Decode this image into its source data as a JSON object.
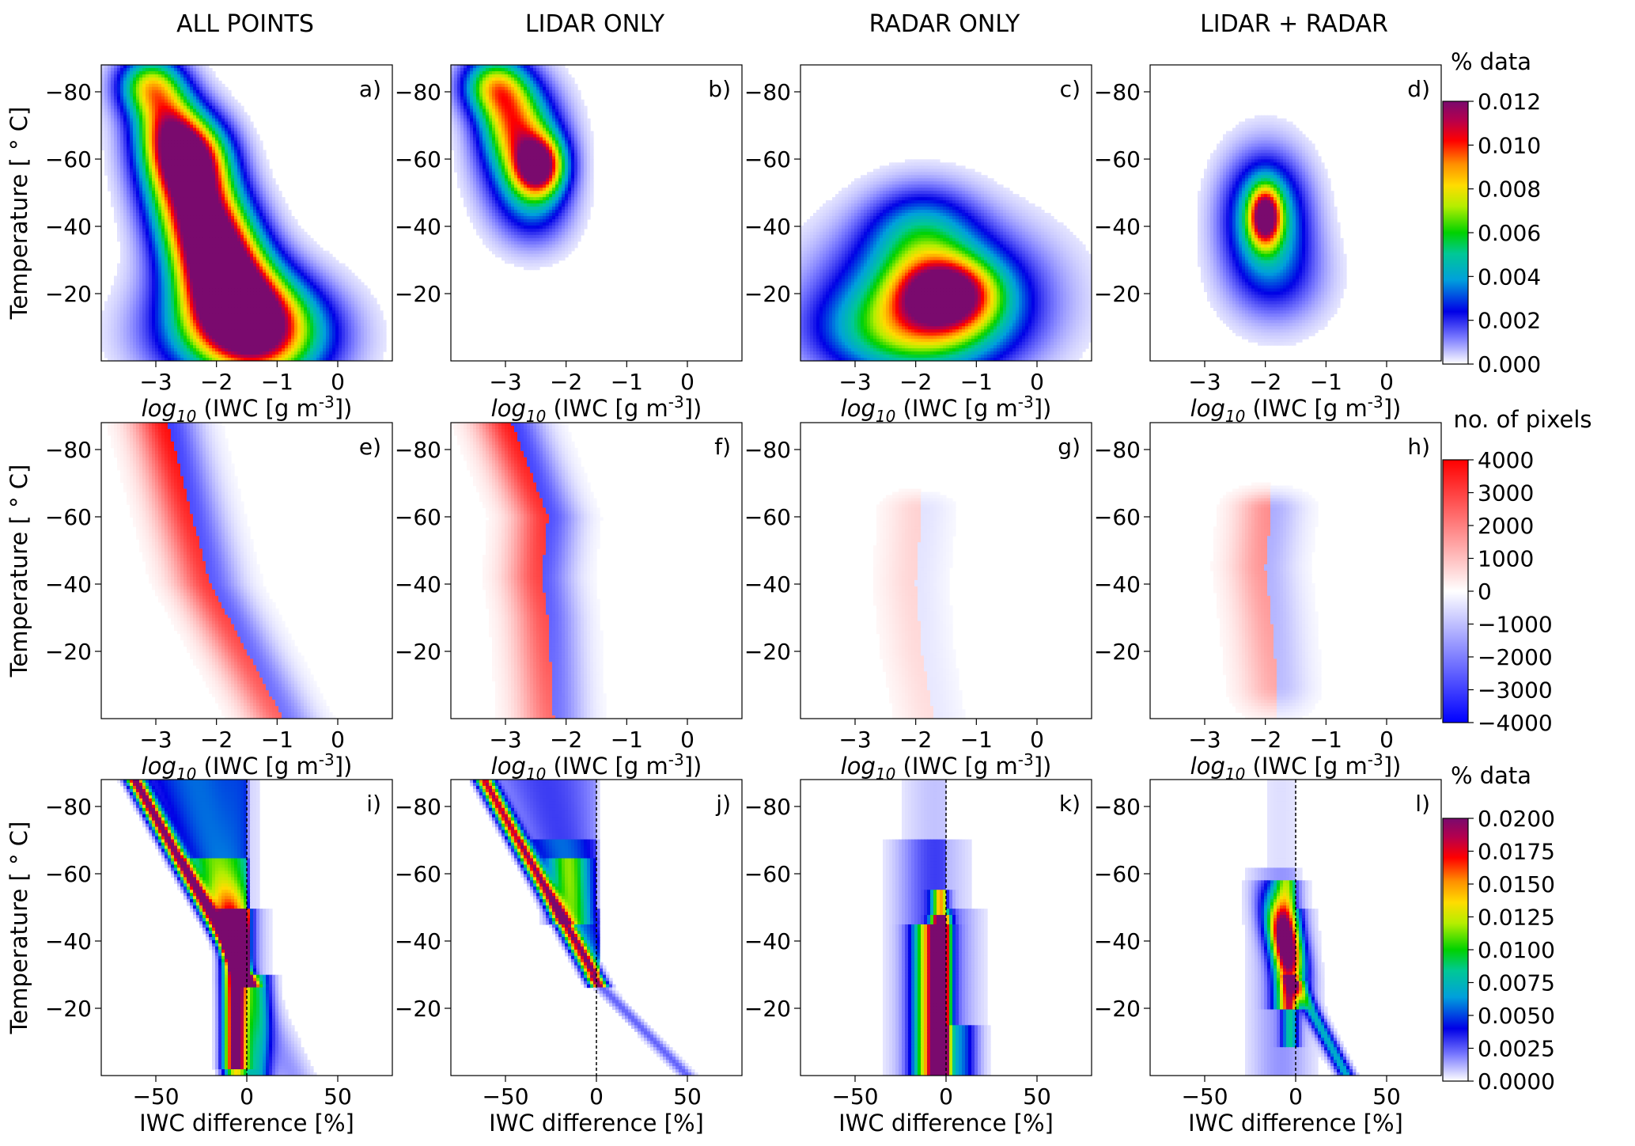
{
  "figure": {
    "column_titles": [
      "ALL POINTS",
      "LIDAR ONLY",
      "RADAR ONLY",
      "LIDAR + RADAR"
    ],
    "panel_labels": [
      "a)",
      "b)",
      "c)",
      "d)",
      "e)",
      "f)",
      "g)",
      "h)",
      "i)",
      "j)",
      "k)",
      "l)"
    ],
    "ylabel": "Temperature [$^\\circ$C]",
    "ylabel_display": "Temperature [ ° C]",
    "xlabel_top_rows": "log10 (IWC [g m-3])",
    "xlabel_parts": {
      "log": "log",
      "sub": "10",
      "main": " (IWC [g m",
      "sup": "-3",
      "end": "])"
    },
    "xlabel_bottom_row": "IWC difference [%]"
  },
  "colorbars": [
    {
      "title": "% data",
      "ticks": [
        "0.000",
        "0.002",
        "0.004",
        "0.006",
        "0.008",
        "0.010",
        "0.012"
      ],
      "colormap": "white-blue-green-yellow-red-purple",
      "stops": [
        "#ffffff",
        "#5b5bff",
        "#0000e6",
        "#00c8c8",
        "#00d200",
        "#ffff00",
        "#ffa000",
        "#ff0000",
        "#8b008b",
        "#7a0a6e"
      ]
    },
    {
      "title": "no. of pixels",
      "ticks": [
        "4000",
        "3000",
        "2000",
        "1000",
        "0",
        "−1000",
        "−2000",
        "−3000",
        "−4000"
      ],
      "colormap": "bwr",
      "stops": [
        "#ff0000",
        "#ffffff",
        "#0000ff"
      ]
    },
    {
      "title": "% data",
      "ticks": [
        "0.0000",
        "0.0025",
        "0.0050",
        "0.0075",
        "0.0100",
        "0.0125",
        "0.0150",
        "0.0175",
        "0.0200"
      ],
      "colormap": "white-blue-green-yellow-red-purple"
    }
  ],
  "chart_data": [
    {
      "panel": "a)",
      "row": 1,
      "column": "ALL POINTS",
      "type": "heatmap",
      "xlabel": "log10 (IWC [g m-3])",
      "ylabel": "Temperature [ ° C]",
      "xticks": [
        -3,
        -2,
        -1,
        0
      ],
      "yticks": [
        -80,
        -60,
        -40,
        -20
      ],
      "xlim": [
        -3.9,
        0.9
      ],
      "ylim": [
        0,
        -88
      ],
      "description_of_mass": [
        {
          "x": -2.1,
          "y": -36,
          "sx": 0.5,
          "sy": 18,
          "tilt": 0.018,
          "a": 1.35
        },
        {
          "x": -1.5,
          "y": -15,
          "sx": 0.7,
          "sy": 11,
          "tilt": 0.02,
          "a": 0.65
        },
        {
          "x": -3.1,
          "y": -82,
          "sx": 0.35,
          "sy": 6,
          "tilt": 0,
          "a": 0.55
        },
        {
          "x": -2.8,
          "y": -70,
          "sx": 0.35,
          "sy": 8,
          "tilt": 0,
          "a": 0.55
        },
        {
          "x": -2.4,
          "y": -60,
          "sx": 0.4,
          "sy": 8,
          "tilt": 0,
          "a": 0.75
        },
        {
          "x": -1.6,
          "y": -8,
          "sx": 0.9,
          "sy": 10,
          "tilt": 0,
          "a": 0.55
        }
      ]
    },
    {
      "panel": "b)",
      "row": 1,
      "column": "LIDAR ONLY",
      "type": "heatmap",
      "xticks": [
        -3,
        -2,
        -1,
        0
      ],
      "yticks": [
        -80,
        -60,
        -40,
        -20
      ],
      "xlim": [
        -3.9,
        0.9
      ],
      "ylim": [
        0,
        -88
      ],
      "description_of_mass": [
        {
          "x": -2.45,
          "y": -58,
          "sx": 0.28,
          "sy": 6,
          "tilt": 0,
          "a": 0.85
        },
        {
          "x": -2.7,
          "y": -62,
          "sx": 0.45,
          "sy": 12,
          "tilt": 0,
          "a": 0.45
        },
        {
          "x": -3.2,
          "y": -82,
          "sx": 0.35,
          "sy": 6,
          "tilt": 0,
          "a": 0.55
        },
        {
          "x": -2.9,
          "y": -72,
          "sx": 0.35,
          "sy": 8,
          "tilt": 0,
          "a": 0.45
        },
        {
          "x": -2.5,
          "y": -45,
          "sx": 0.4,
          "sy": 8,
          "tilt": 0,
          "a": 0.15
        }
      ]
    },
    {
      "panel": "c)",
      "row": 1,
      "column": "RADAR ONLY",
      "type": "heatmap",
      "xticks": [
        -3,
        -2,
        -1,
        0
      ],
      "yticks": [
        -80,
        -60,
        -40,
        -20
      ],
      "xlim": [
        -3.9,
        0.9
      ],
      "ylim": [
        0,
        -88
      ],
      "description_of_mass": [
        {
          "x": -1.5,
          "y": -20,
          "sx": 0.55,
          "sy": 7,
          "tilt": 0,
          "a": 0.75
        },
        {
          "x": -1.7,
          "y": -20,
          "sx": 1.1,
          "sy": 13,
          "tilt": 0,
          "a": 0.45
        },
        {
          "x": -2.1,
          "y": -8,
          "sx": 1.0,
          "sy": 9,
          "tilt": 0,
          "a": 0.4
        },
        {
          "x": -1.9,
          "y": -38,
          "sx": 0.6,
          "sy": 9,
          "tilt": 0,
          "a": 0.3
        }
      ]
    },
    {
      "panel": "d)",
      "row": 1,
      "column": "LIDAR + RADAR",
      "type": "heatmap",
      "xticks": [
        -3,
        -2,
        -1,
        0
      ],
      "yticks": [
        -80,
        -60,
        -40,
        -20
      ],
      "xlim": [
        -3.9,
        0.9
      ],
      "ylim": [
        0,
        -88
      ],
      "description_of_mass": [
        {
          "x": -2.0,
          "y": -43,
          "sx": 0.18,
          "sy": 6,
          "tilt": 0,
          "a": 0.75
        },
        {
          "x": -2.0,
          "y": -43,
          "sx": 0.45,
          "sy": 12,
          "tilt": 0,
          "a": 0.45
        },
        {
          "x": -1.8,
          "y": -25,
          "sx": 0.55,
          "sy": 10,
          "tilt": 0,
          "a": 0.15
        }
      ]
    },
    {
      "panel": "e)",
      "row": 2,
      "column": "ALL POINTS",
      "type": "heatmap",
      "diverging": true,
      "xticks": [
        -3,
        -2,
        -1,
        0
      ],
      "yticks": [
        -80,
        -60,
        -40,
        -20
      ],
      "xlim": [
        -3.9,
        0.9
      ],
      "ylim": [
        0,
        -88
      ],
      "boundary": [
        [
          -2.8,
          -88
        ],
        [
          -2.4,
          -60
        ],
        [
          -2.1,
          -40
        ],
        [
          -1.5,
          -20
        ],
        [
          -0.9,
          0
        ]
      ],
      "red_max": 0.95,
      "blue_max": 0.75
    },
    {
      "panel": "f)",
      "row": 2,
      "column": "LIDAR ONLY",
      "type": "heatmap",
      "diverging": true,
      "xticks": [
        -3,
        -2,
        -1,
        0
      ],
      "yticks": [
        -80,
        -60,
        -40,
        -20
      ],
      "xlim": [
        -3.9,
        0.9
      ],
      "ylim": [
        0,
        -88
      ],
      "boundary": [
        [
          -2.9,
          -88
        ],
        [
          -2.3,
          -60
        ],
        [
          -2.4,
          -42
        ],
        [
          -2.3,
          -30
        ],
        [
          -2.2,
          0
        ]
      ],
      "red_max": 0.9,
      "blue_max": 0.75
    },
    {
      "panel": "g)",
      "row": 2,
      "column": "RADAR ONLY",
      "type": "heatmap",
      "diverging": true,
      "xticks": [
        -3,
        -2,
        -1,
        0
      ],
      "yticks": [
        -80,
        -60,
        -40,
        -20
      ],
      "xlim": [
        -3.9,
        0.9
      ],
      "ylim": [
        0,
        -88
      ],
      "boundary": [
        [
          -1.9,
          -62
        ],
        [
          -2.0,
          -40
        ],
        [
          -1.9,
          -20
        ],
        [
          -1.7,
          0
        ]
      ],
      "red_max": 0.2,
      "blue_max": 0.12
    },
    {
      "panel": "h)",
      "row": 2,
      "column": "LIDAR + RADAR",
      "type": "heatmap",
      "diverging": true,
      "xticks": [
        -3,
        -2,
        -1,
        0
      ],
      "yticks": [
        -80,
        -60,
        -40,
        -20
      ],
      "xlim": [
        -3.9,
        0.9
      ],
      "ylim": [
        0,
        -88
      ],
      "boundary": [
        [
          -1.9,
          -62
        ],
        [
          -2.0,
          -45
        ],
        [
          -1.9,
          -30
        ],
        [
          -1.8,
          -10
        ]
      ],
      "red_max": 0.5,
      "blue_max": 0.35
    },
    {
      "panel": "i)",
      "row": 3,
      "column": "ALL POINTS",
      "type": "heatmap",
      "xlabel": "IWC difference [%]",
      "xticks": [
        -50,
        0,
        50
      ],
      "yticks": [
        -80,
        -60,
        -40,
        -20
      ],
      "xlim": [
        -80,
        80
      ],
      "ylim": [
        0,
        -88
      ],
      "dashed_vertical_line_at_x": 0
    },
    {
      "panel": "j)",
      "row": 3,
      "column": "LIDAR ONLY",
      "type": "heatmap",
      "xlabel": "IWC difference [%]",
      "xticks": [
        -50,
        0,
        50
      ],
      "yticks": [
        -80,
        -60,
        -40,
        -20
      ],
      "xlim": [
        -80,
        80
      ],
      "ylim": [
        0,
        -88
      ],
      "dashed_vertical_line_at_x": 0
    },
    {
      "panel": "k)",
      "row": 3,
      "column": "RADAR ONLY",
      "type": "heatmap",
      "xlabel": "IWC difference [%]",
      "xticks": [
        -50,
        0,
        50
      ],
      "yticks": [
        -80,
        -60,
        -40,
        -20
      ],
      "xlim": [
        -80,
        80
      ],
      "ylim": [
        0,
        -88
      ],
      "dashed_vertical_line_at_x": 0
    },
    {
      "panel": "l)",
      "row": 3,
      "column": "LIDAR + RADAR",
      "type": "heatmap",
      "xlabel": "IWC difference [%]",
      "xticks": [
        -50,
        0,
        50
      ],
      "yticks": [
        -80,
        -60,
        -40,
        -20
      ],
      "xlim": [
        -80,
        80
      ],
      "ylim": [
        0,
        -88
      ],
      "dashed_vertical_line_at_x": 0
    }
  ]
}
